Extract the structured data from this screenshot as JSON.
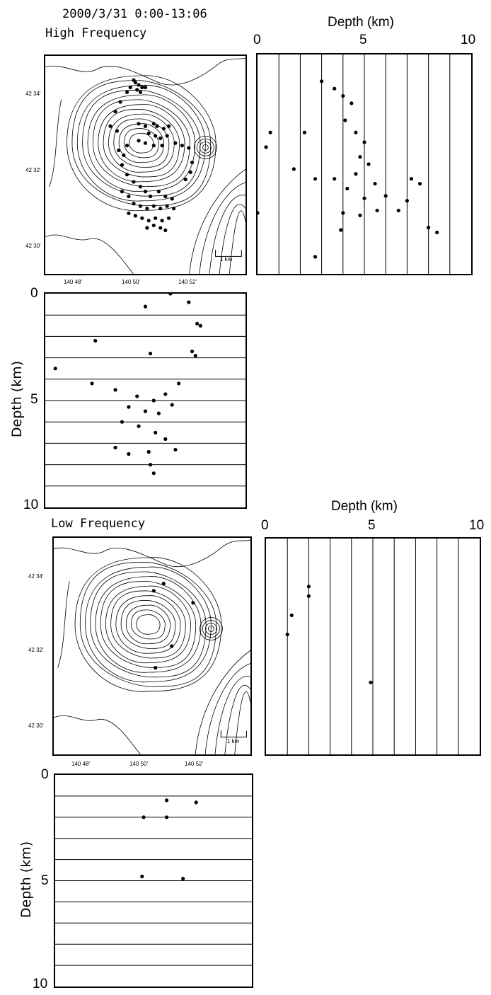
{
  "header": {
    "title": "2000/3/31 0:00-13:06",
    "hf_label": "High Frequency",
    "lf_label": "Low Frequency"
  },
  "map": {
    "lat_ticks": [
      "42 34'",
      "42 32'",
      "42 30'"
    ],
    "lon_ticks": [
      "140 48'",
      "140 50'",
      "140 52'"
    ],
    "scale_label": "1 km"
  },
  "axes": {
    "depth_title": "Depth (km)",
    "depth_ticks": [
      "0",
      "5",
      "10"
    ]
  },
  "chart_data": [
    {
      "type": "scatter",
      "title": "High Frequency",
      "panel": "epicenter-map",
      "xlabel": "",
      "ylabel": "",
      "x_ticks": [
        "140 48'",
        "140 50'",
        "140 52'"
      ],
      "y_ticks": [
        "42 34'",
        "42 32'",
        "42 30'"
      ],
      "points": [
        [
          140.833,
          42.575
        ],
        [
          140.834,
          42.574
        ],
        [
          140.836,
          42.573
        ],
        [
          140.838,
          42.572
        ],
        [
          140.835,
          42.571
        ],
        [
          140.837,
          42.57
        ],
        [
          140.831,
          42.572
        ],
        [
          140.84,
          42.572
        ],
        [
          140.829,
          42.57
        ],
        [
          140.825,
          42.566
        ],
        [
          140.822,
          42.562
        ],
        [
          140.819,
          42.556
        ],
        [
          140.823,
          42.554
        ],
        [
          140.836,
          42.557
        ],
        [
          140.84,
          42.556
        ],
        [
          140.845,
          42.557
        ],
        [
          140.847,
          42.556
        ],
        [
          140.851,
          42.555
        ],
        [
          140.854,
          42.556
        ],
        [
          140.842,
          42.553
        ],
        [
          140.846,
          42.552
        ],
        [
          140.849,
          42.551
        ],
        [
          140.853,
          42.552
        ],
        [
          140.836,
          42.55
        ],
        [
          140.84,
          42.549
        ],
        [
          140.845,
          42.548
        ],
        [
          140.85,
          42.548
        ],
        [
          140.829,
          42.548
        ],
        [
          140.824,
          42.546
        ],
        [
          140.827,
          42.544
        ],
        [
          140.858,
          42.549
        ],
        [
          140.862,
          42.548
        ],
        [
          140.866,
          42.547
        ],
        [
          140.868,
          42.541
        ],
        [
          140.867,
          42.537
        ],
        [
          140.864,
          42.534
        ],
        [
          140.826,
          42.54
        ],
        [
          140.829,
          42.536
        ],
        [
          140.833,
          42.533
        ],
        [
          140.837,
          42.531
        ],
        [
          140.84,
          42.529
        ],
        [
          140.843,
          42.527
        ],
        [
          140.848,
          42.529
        ],
        [
          140.852,
          42.527
        ],
        [
          140.856,
          42.526
        ],
        [
          140.826,
          42.529
        ],
        [
          140.83,
          42.527
        ],
        [
          140.833,
          42.524
        ],
        [
          140.837,
          42.523
        ],
        [
          140.841,
          42.522
        ],
        [
          140.845,
          42.523
        ],
        [
          140.849,
          42.522
        ],
        [
          140.853,
          42.523
        ],
        [
          140.857,
          42.522
        ],
        [
          140.83,
          42.52
        ],
        [
          140.834,
          42.519
        ],
        [
          140.838,
          42.518
        ],
        [
          140.842,
          42.517
        ],
        [
          140.846,
          42.518
        ],
        [
          140.85,
          42.517
        ],
        [
          140.854,
          42.518
        ],
        [
          140.841,
          42.514
        ],
        [
          140.845,
          42.515
        ],
        [
          140.849,
          42.514
        ],
        [
          140.852,
          42.513
        ]
      ]
    },
    {
      "type": "scatter",
      "title": "High Frequency",
      "panel": "depth-vs-longitude",
      "xlabel": "",
      "ylabel": "Depth (km)",
      "ylim": [
        0,
        10
      ],
      "points": [
        [
          140.866,
          0.4
        ],
        [
          140.855,
          0.0
        ],
        [
          140.84,
          0.6
        ],
        [
          140.871,
          1.4
        ],
        [
          140.873,
          1.5
        ],
        [
          140.81,
          2.2
        ],
        [
          140.868,
          2.7
        ],
        [
          140.87,
          2.9
        ],
        [
          140.843,
          2.8
        ],
        [
          140.786,
          3.5
        ],
        [
          140.808,
          4.2
        ],
        [
          140.822,
          4.5
        ],
        [
          140.835,
          4.8
        ],
        [
          140.845,
          5.0
        ],
        [
          140.852,
          4.7
        ],
        [
          140.86,
          4.2
        ],
        [
          140.83,
          5.3
        ],
        [
          140.84,
          5.5
        ],
        [
          140.848,
          5.6
        ],
        [
          140.856,
          5.2
        ],
        [
          140.826,
          6.0
        ],
        [
          140.836,
          6.2
        ],
        [
          140.846,
          6.5
        ],
        [
          140.852,
          6.8
        ],
        [
          140.822,
          7.2
        ],
        [
          140.83,
          7.5
        ],
        [
          140.842,
          7.4
        ],
        [
          140.858,
          7.3
        ],
        [
          140.843,
          8.0
        ],
        [
          140.845,
          8.4
        ]
      ]
    },
    {
      "type": "scatter",
      "title": "High Frequency",
      "panel": "depth-vs-latitude",
      "xlabel": "Depth (km)",
      "ylabel": "",
      "xlim": [
        0,
        10
      ],
      "points": [
        [
          0.6,
          42.553
        ],
        [
          0.4,
          42.547
        ],
        [
          2.2,
          42.553
        ],
        [
          3.0,
          42.574
        ],
        [
          3.6,
          42.571
        ],
        [
          4.0,
          42.568
        ],
        [
          4.4,
          42.565
        ],
        [
          4.1,
          42.558
        ],
        [
          4.6,
          42.553
        ],
        [
          5.0,
          42.549
        ],
        [
          4.8,
          42.543
        ],
        [
          5.2,
          42.54
        ],
        [
          4.6,
          42.536
        ],
        [
          5.5,
          42.532
        ],
        [
          2.7,
          42.534
        ],
        [
          1.7,
          42.538
        ],
        [
          3.6,
          42.534
        ],
        [
          4.2,
          42.53
        ],
        [
          5.0,
          42.526
        ],
        [
          6.0,
          42.527
        ],
        [
          7.2,
          42.534
        ],
        [
          7.6,
          42.532
        ],
        [
          7.0,
          42.525
        ],
        [
          6.6,
          42.521
        ],
        [
          4.0,
          42.52
        ],
        [
          4.8,
          42.519
        ],
        [
          5.6,
          42.521
        ],
        [
          8.0,
          42.514
        ],
        [
          8.4,
          42.512
        ],
        [
          0.0,
          42.52
        ],
        [
          3.9,
          42.513
        ],
        [
          2.7,
          42.502
        ]
      ]
    },
    {
      "type": "scatter",
      "title": "Low Frequency",
      "panel": "epicenter-map",
      "x_ticks": [
        "140 48'",
        "140 50'",
        "140 52'"
      ],
      "y_ticks": [
        "42 34'",
        "42 32'",
        "42 30'"
      ],
      "points": [
        [
          140.841,
          42.563
        ],
        [
          140.847,
          42.566
        ],
        [
          140.865,
          42.558
        ],
        [
          140.842,
          42.531
        ],
        [
          140.852,
          42.54
        ]
      ]
    },
    {
      "type": "scatter",
      "title": "Low Frequency",
      "panel": "depth-vs-longitude",
      "ylabel": "Depth (km)",
      "ylim": [
        0,
        10
      ],
      "points": [
        [
          140.848,
          1.2
        ],
        [
          140.866,
          1.3
        ],
        [
          140.834,
          2.0
        ],
        [
          140.848,
          2.0
        ],
        [
          140.833,
          4.8
        ],
        [
          140.858,
          4.9
        ]
      ]
    },
    {
      "type": "scatter",
      "title": "Low Frequency",
      "panel": "depth-vs-latitude",
      "xlabel": "Depth (km)",
      "xlim": [
        0,
        10
      ],
      "points": [
        [
          2.0,
          42.565
        ],
        [
          2.0,
          42.561
        ],
        [
          1.2,
          42.553
        ],
        [
          1.0,
          42.545
        ],
        [
          4.9,
          42.525
        ]
      ]
    }
  ]
}
